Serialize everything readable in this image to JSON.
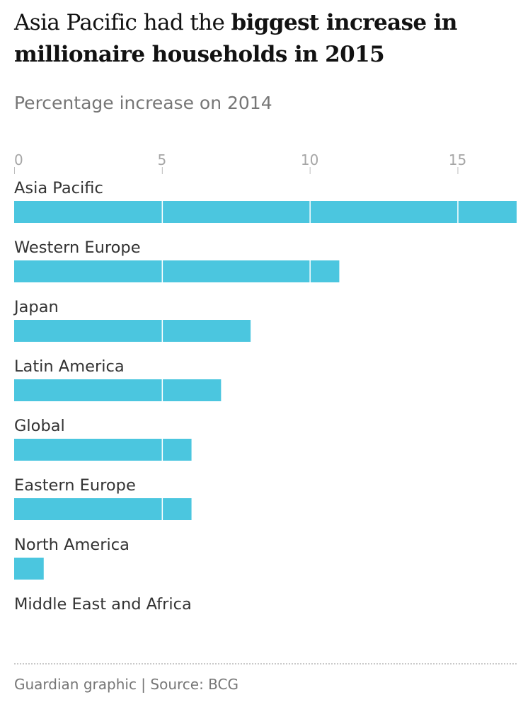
{
  "header": {
    "title_regular": "Asia Pacific had the ",
    "title_bold": "biggest increase in millionaire households in 2015",
    "subtitle": "Percentage increase on 2014"
  },
  "footer": {
    "source": "Guardian graphic | Source: BCG"
  },
  "colors": {
    "bar": "#4bc6df",
    "grid": "#ffffff",
    "tick": "#bdbdbd"
  },
  "chart_data": {
    "type": "bar",
    "orientation": "horizontal",
    "title": "Asia Pacific had the biggest increase in millionaire households in 2015",
    "subtitle": "Percentage increase on 2014",
    "categories": [
      "Asia Pacific",
      "Western Europe",
      "Japan",
      "Latin America",
      "Global",
      "Eastern Europe",
      "North America",
      "Middle East and Africa"
    ],
    "values": [
      17,
      11,
      8,
      7,
      6,
      6,
      1,
      0
    ],
    "xticks": [
      0,
      5,
      10,
      15
    ],
    "xlim": [
      0,
      17
    ],
    "grid": true
  }
}
